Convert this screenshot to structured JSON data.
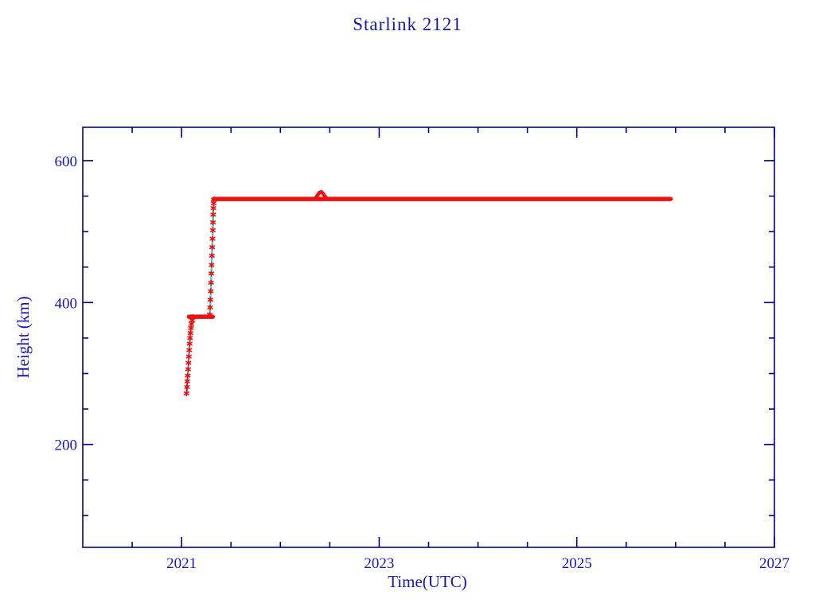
{
  "page": {
    "background_color": "#ffffff",
    "text_color": "#1717b0",
    "axis_color": "#00008d"
  },
  "chart_data": {
    "type": "scatter",
    "title": "Starlink 2121",
    "xlabel": "Time(UTC)",
    "ylabel": "Height (km)",
    "xlim": [
      2020,
      2027
    ],
    "ylim": [
      55,
      647
    ],
    "x_major_ticks": [
      2021,
      2023,
      2025,
      2027
    ],
    "x_minor_interval": 0.5,
    "y_major_ticks": [
      200,
      400,
      600
    ],
    "y_minor_interval": 50,
    "grid": false,
    "legend_position": "none",
    "colors": {
      "marker": "#ee1111",
      "connect_line": "#2ee3ee",
      "initial_line": "#00008d"
    },
    "series": [
      {
        "name": "initial-injection-stub",
        "mode": "stub",
        "points": [
          [
            2021.05,
            272
          ],
          [
            2021.062,
            297
          ]
        ]
      },
      {
        "name": "launch-ascent",
        "mode": "line+markers",
        "points": [
          [
            2021.05,
            272
          ],
          [
            2021.055,
            281
          ],
          [
            2021.058,
            289
          ],
          [
            2021.062,
            297
          ],
          [
            2021.066,
            306
          ],
          [
            2021.07,
            315
          ],
          [
            2021.074,
            324
          ],
          [
            2021.078,
            333
          ],
          [
            2021.082,
            342
          ],
          [
            2021.086,
            350
          ],
          [
            2021.09,
            357
          ],
          [
            2021.095,
            364
          ],
          [
            2021.1,
            370
          ],
          [
            2021.107,
            375
          ],
          [
            2021.113,
            379
          ]
        ]
      },
      {
        "name": "parking-plateau-380km",
        "mode": "thick",
        "points": [
          [
            2021.075,
            380
          ],
          [
            2021.315,
            380
          ]
        ]
      },
      {
        "name": "orbit-raise",
        "mode": "line+markers",
        "points": [
          [
            2021.285,
            383
          ],
          [
            2021.289,
            393
          ],
          [
            2021.292,
            404
          ],
          [
            2021.295,
            416
          ],
          [
            2021.298,
            428
          ],
          [
            2021.301,
            441
          ],
          [
            2021.304,
            453
          ],
          [
            2021.307,
            466
          ],
          [
            2021.31,
            478
          ],
          [
            2021.313,
            490
          ],
          [
            2021.316,
            502
          ],
          [
            2021.318,
            513
          ],
          [
            2021.32,
            524
          ],
          [
            2021.322,
            533
          ],
          [
            2021.324,
            540
          ],
          [
            2021.326,
            545
          ]
        ]
      },
      {
        "name": "station-keeping-546km",
        "mode": "thick",
        "points": [
          [
            2021.327,
            546
          ],
          [
            2025.95,
            546
          ]
        ]
      },
      {
        "name": "maneuver-bump",
        "mode": "bump",
        "points": [
          [
            2022.355,
            547
          ],
          [
            2022.375,
            551
          ],
          [
            2022.395,
            555
          ],
          [
            2022.415,
            556
          ],
          [
            2022.435,
            553
          ],
          [
            2022.455,
            549
          ],
          [
            2022.47,
            547
          ]
        ]
      }
    ]
  }
}
